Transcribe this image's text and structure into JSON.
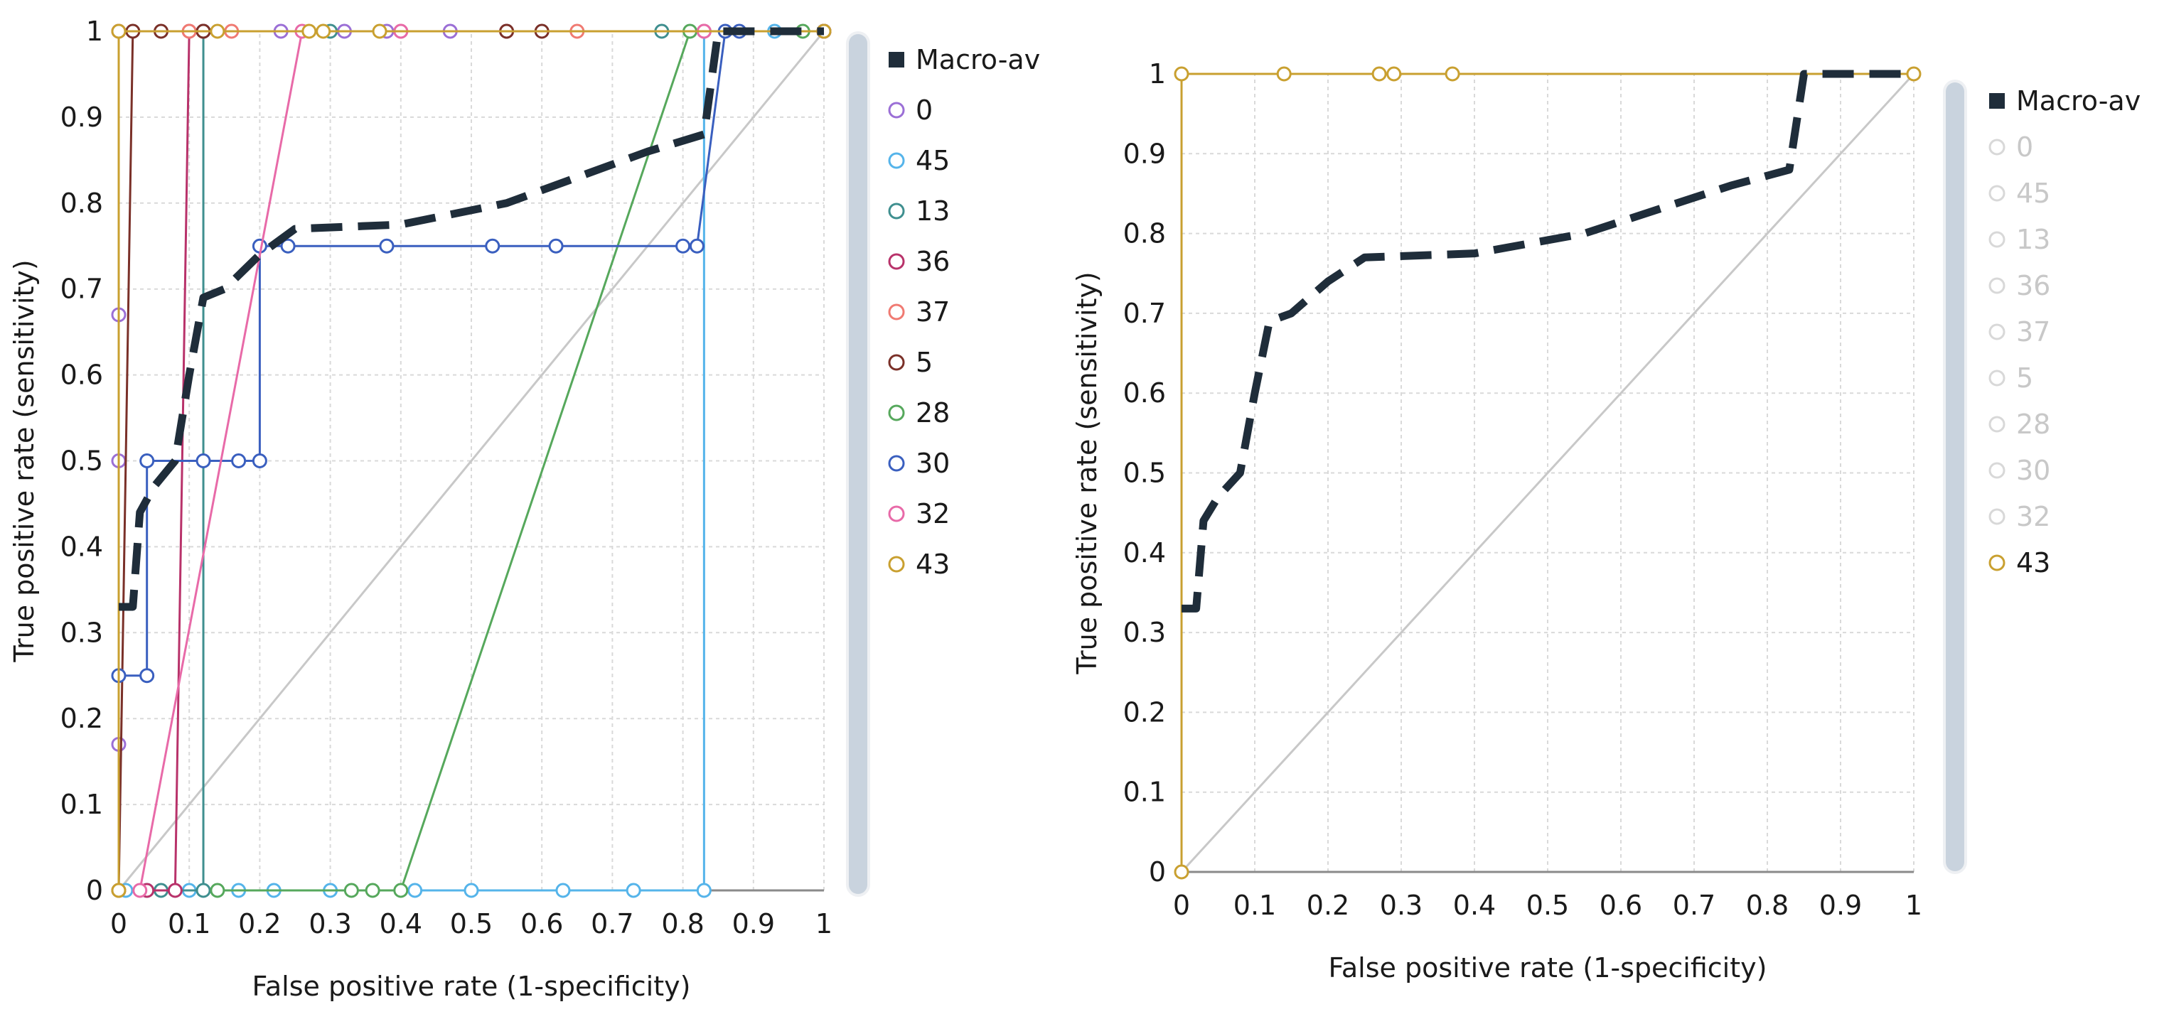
{
  "chart_data": [
    {
      "type": "line",
      "subtype": "roc",
      "title": "",
      "xlabel": "False positive rate (1-specificity)",
      "ylabel": "True positive rate (sensitivity)",
      "xlim": [
        0,
        1
      ],
      "ylim": [
        0,
        1
      ],
      "x_ticks": [
        "0",
        "0.1",
        "0.2",
        "0.3",
        "0.4",
        "0.5",
        "0.6",
        "0.7",
        "0.8",
        "0.9",
        "1"
      ],
      "y_ticks": [
        "0",
        "0.1",
        "0.2",
        "0.3",
        "0.4",
        "0.5",
        "0.6",
        "0.7",
        "0.8",
        "0.9",
        "1"
      ],
      "grid": true,
      "legend_position": "right",
      "diagonal": {
        "color": "#c8c8c8",
        "points": [
          [
            0,
            0
          ],
          [
            1,
            1
          ]
        ]
      },
      "macro_average": {
        "name": "Macro-av",
        "color": "#1f2d3a",
        "style": "dashed",
        "points": [
          [
            0,
            0.33
          ],
          [
            0.02,
            0.33
          ],
          [
            0.03,
            0.44
          ],
          [
            0.05,
            0.47
          ],
          [
            0.08,
            0.5
          ],
          [
            0.1,
            0.6
          ],
          [
            0.12,
            0.69
          ],
          [
            0.15,
            0.7
          ],
          [
            0.2,
            0.74
          ],
          [
            0.25,
            0.77
          ],
          [
            0.4,
            0.775
          ],
          [
            0.55,
            0.8
          ],
          [
            0.75,
            0.86
          ],
          [
            0.83,
            0.88
          ],
          [
            0.85,
            1.0
          ],
          [
            1.0,
            1.0
          ]
        ]
      },
      "series": [
        {
          "name": "0",
          "color": "#9b6fd6",
          "points": [
            [
              0,
              0.17
            ],
            [
              0,
              0.5
            ],
            [
              0,
              0.67
            ],
            [
              0,
              1
            ],
            [
              0.12,
              1
            ],
            [
              0.23,
              1
            ],
            [
              0.32,
              1
            ],
            [
              0.38,
              1
            ],
            [
              0.47,
              1
            ],
            [
              1,
              1
            ]
          ]
        },
        {
          "name": "45",
          "color": "#55b4ea",
          "points": [
            [
              0.01,
              0
            ],
            [
              0.04,
              0
            ],
            [
              0.1,
              0
            ],
            [
              0.17,
              0
            ],
            [
              0.22,
              0
            ],
            [
              0.3,
              0
            ],
            [
              0.42,
              0
            ],
            [
              0.5,
              0
            ],
            [
              0.63,
              0
            ],
            [
              0.73,
              0
            ],
            [
              0.83,
              0
            ],
            [
              0.83,
              1
            ],
            [
              0.93,
              1
            ],
            [
              1,
              1
            ]
          ]
        },
        {
          "name": "13",
          "color": "#3f8f8f",
          "points": [
            [
              0.06,
              0
            ],
            [
              0.12,
              0
            ],
            [
              0.12,
              1
            ],
            [
              0.3,
              1
            ],
            [
              0.77,
              1
            ],
            [
              1,
              1
            ]
          ]
        },
        {
          "name": "36",
          "color": "#b8326a",
          "points": [
            [
              0.04,
              0
            ],
            [
              0.08,
              0
            ],
            [
              0.1,
              1
            ],
            [
              0.12,
              1
            ],
            [
              0.55,
              1
            ],
            [
              1,
              1
            ]
          ]
        },
        {
          "name": "37",
          "color": "#f07a72",
          "points": [
            [
              0,
              1
            ],
            [
              0.1,
              1
            ],
            [
              0.16,
              1
            ],
            [
              0.4,
              1
            ],
            [
              0.65,
              1
            ],
            [
              0.83,
              1
            ],
            [
              1,
              1
            ]
          ]
        },
        {
          "name": "5",
          "color": "#7a3028",
          "points": [
            [
              0,
              0
            ],
            [
              0.02,
              1
            ],
            [
              0.06,
              1
            ],
            [
              0.12,
              1
            ],
            [
              0.55,
              1
            ],
            [
              0.6,
              1
            ],
            [
              1,
              1
            ]
          ]
        },
        {
          "name": "28",
          "color": "#56a85c",
          "points": [
            [
              0.14,
              0
            ],
            [
              0.33,
              0
            ],
            [
              0.36,
              0
            ],
            [
              0.4,
              0
            ],
            [
              0.81,
              1
            ],
            [
              0.97,
              1
            ],
            [
              1,
              1
            ]
          ]
        },
        {
          "name": "30",
          "color": "#3a5fbf",
          "points": [
            [
              0,
              0.25
            ],
            [
              0.04,
              0.25
            ],
            [
              0.04,
              0.5
            ],
            [
              0.12,
              0.5
            ],
            [
              0.17,
              0.5
            ],
            [
              0.2,
              0.5
            ],
            [
              0.2,
              0.75
            ],
            [
              0.24,
              0.75
            ],
            [
              0.38,
              0.75
            ],
            [
              0.53,
              0.75
            ],
            [
              0.62,
              0.75
            ],
            [
              0.8,
              0.75
            ],
            [
              0.82,
              0.75
            ],
            [
              0.86,
              1
            ],
            [
              0.88,
              1
            ]
          ]
        },
        {
          "name": "32",
          "color": "#e86aa8",
          "points": [
            [
              0.03,
              0
            ],
            [
              0.26,
              1
            ],
            [
              0.4,
              1
            ],
            [
              0.83,
              1
            ],
            [
              1,
              1
            ]
          ]
        },
        {
          "name": "43",
          "color": "#c9a030",
          "points": [
            [
              0,
              0
            ],
            [
              0,
              1
            ],
            [
              0.14,
              1
            ],
            [
              0.27,
              1
            ],
            [
              0.29,
              1
            ],
            [
              0.37,
              1
            ],
            [
              1,
              1
            ]
          ]
        }
      ]
    },
    {
      "type": "line",
      "subtype": "roc",
      "title": "",
      "xlabel": "False positive rate (1-specificity)",
      "ylabel": "True positive rate (sensitivity)",
      "xlim": [
        0,
        1
      ],
      "ylim": [
        0,
        1
      ],
      "x_ticks": [
        "0",
        "0.1",
        "0.2",
        "0.3",
        "0.4",
        "0.5",
        "0.6",
        "0.7",
        "0.8",
        "0.9",
        "1"
      ],
      "y_ticks": [
        "0",
        "0.1",
        "0.2",
        "0.3",
        "0.4",
        "0.5",
        "0.6",
        "0.7",
        "0.8",
        "0.9",
        "1"
      ],
      "grid": true,
      "legend_position": "right",
      "diagonal": {
        "color": "#c8c8c8",
        "points": [
          [
            0,
            0
          ],
          [
            1,
            1
          ]
        ]
      },
      "macro_average": {
        "name": "Macro-av",
        "color": "#1f2d3a",
        "style": "dashed",
        "points": [
          [
            0,
            0.33
          ],
          [
            0.02,
            0.33
          ],
          [
            0.03,
            0.44
          ],
          [
            0.05,
            0.47
          ],
          [
            0.08,
            0.5
          ],
          [
            0.1,
            0.6
          ],
          [
            0.12,
            0.69
          ],
          [
            0.15,
            0.7
          ],
          [
            0.2,
            0.74
          ],
          [
            0.25,
            0.77
          ],
          [
            0.4,
            0.775
          ],
          [
            0.55,
            0.8
          ],
          [
            0.75,
            0.86
          ],
          [
            0.83,
            0.88
          ],
          [
            0.85,
            1.0
          ],
          [
            1.0,
            1.0
          ]
        ]
      },
      "series": [
        {
          "name": "0",
          "color": "#9b6fd6",
          "hidden": true,
          "points": []
        },
        {
          "name": "45",
          "color": "#55b4ea",
          "hidden": true,
          "points": []
        },
        {
          "name": "13",
          "color": "#3f8f8f",
          "hidden": true,
          "points": []
        },
        {
          "name": "36",
          "color": "#b8326a",
          "hidden": true,
          "points": []
        },
        {
          "name": "37",
          "color": "#f07a72",
          "hidden": true,
          "points": []
        },
        {
          "name": "5",
          "color": "#7a3028",
          "hidden": true,
          "points": []
        },
        {
          "name": "28",
          "color": "#56a85c",
          "hidden": true,
          "points": []
        },
        {
          "name": "30",
          "color": "#3a5fbf",
          "hidden": true,
          "points": []
        },
        {
          "name": "32",
          "color": "#e86aa8",
          "hidden": true,
          "points": []
        },
        {
          "name": "43",
          "color": "#c9a030",
          "hidden": false,
          "points": [
            [
              0,
              0
            ],
            [
              0,
              1
            ],
            [
              0.14,
              1
            ],
            [
              0.27,
              1
            ],
            [
              0.29,
              1
            ],
            [
              0.37,
              1
            ],
            [
              1,
              1
            ]
          ]
        }
      ]
    }
  ],
  "colors": {
    "grid": "#d9d9d9",
    "axis": "#8a8a8a",
    "text": "#1a1a1a",
    "legend_hidden_text": "#c8c8c8",
    "scrollbar_track": "#eef0f3",
    "scrollbar_thumb": "#c9d3de"
  }
}
